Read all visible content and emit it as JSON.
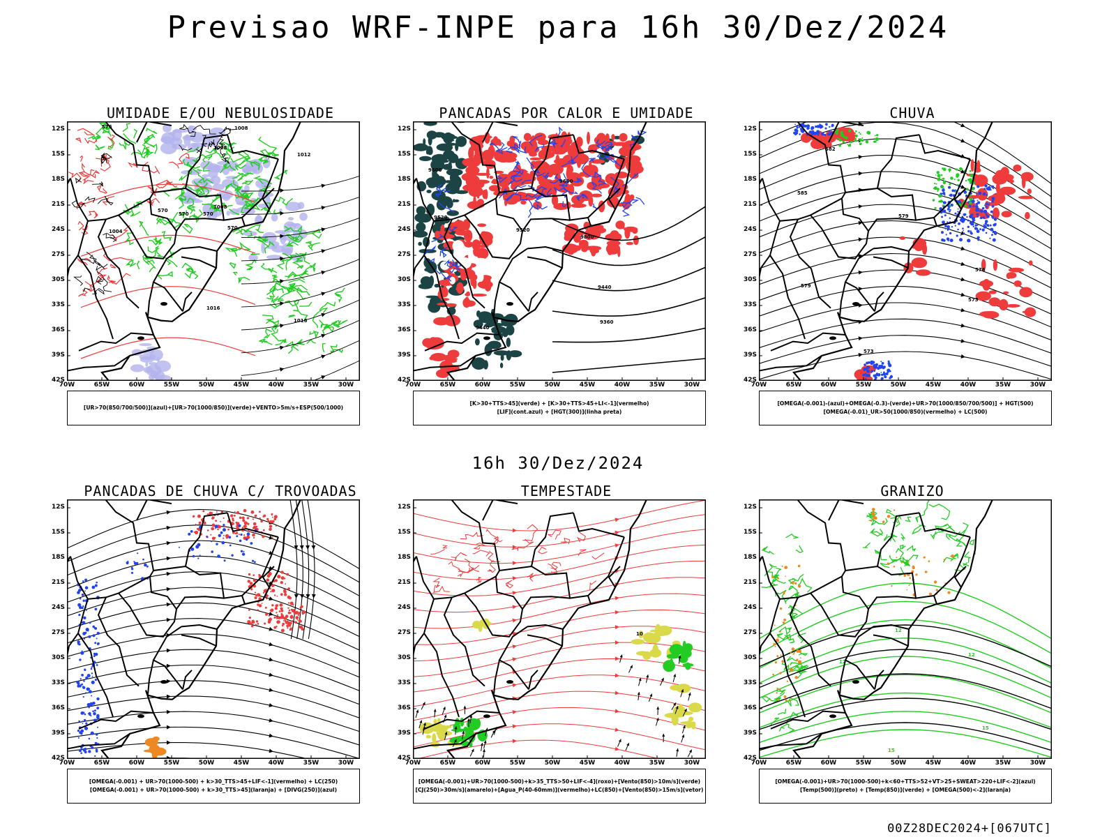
{
  "header": {
    "title": "Previsao WRF-INPE  para 16h 30/Dez/2024"
  },
  "mid_label": "16h 30/Dez/2024",
  "footer_stamp": "00Z28DEC2024+[067UTC]",
  "axes": {
    "lat_ticks": [
      "12S",
      "15S",
      "18S",
      "21S",
      "24S",
      "27S",
      "30S",
      "33S",
      "36S",
      "39S",
      "42S"
    ],
    "lon_ticks": [
      "70W",
      "65W",
      "60W",
      "55W",
      "50W",
      "45W",
      "40W",
      "35W",
      "30W"
    ]
  },
  "colors": {
    "green": "#22cc22",
    "red": "#ee3b3b",
    "blue": "#2244ee",
    "lavender": "#b3b3ee",
    "dark_teal": "#1c4444",
    "yellow": "#d9d94a",
    "orange": "#ee8822",
    "black": "#000000"
  },
  "panels": [
    {
      "title": "UMIDADE E/OU NEBULOSIDADE",
      "caption_lines": [
        "[UR>70(850/700/500)](azul)+[UR>70(1000/850)](verde)+VENTO>5m/s+ESP(500/1000)"
      ],
      "contour_labels": [
        "1008",
        "1008",
        "1012",
        "1016",
        "1016",
        "1008",
        "1004",
        "570",
        "570",
        "570",
        "570",
        "576"
      ]
    },
    {
      "title": "PANCADAS POR CALOR E UMIDADE",
      "caption_lines": [
        "[K>30+TTS>45](verde) + [K>30+TTS>45+LI<-1](vermelho)",
        "[LIF](cont.azul) + [HGT(300)](linha preta)"
      ],
      "contour_labels": [
        "9600",
        "9600",
        "9520",
        "9520",
        "9800",
        "9440",
        "9360",
        "9440"
      ]
    },
    {
      "title": "CHUVA",
      "caption_lines": [
        "[OMEGA(-0.001)-(azul)+OMEGA(-0.3)-(verde)+UR>70(1000/850/700/500)] + HGT(500)",
        "[OMEGA(-0.01)_UR>50(1000/850)(vermelho) + LC(500)"
      ],
      "contour_labels": [
        "582",
        "585",
        "579",
        "576",
        "573",
        "573",
        "579"
      ]
    },
    {
      "title": "PANCADAS DE CHUVA C/ TROVOADAS",
      "caption_lines": [
        "[OMEGA(-0.001) + UR>70(1000-500) + k>30_TTS>45+LIF<-1](vermelho) + LC(250)",
        "[OMEGA(-0.001) + UR>70(1000-500) + k>30_TTS>45](laranja) + [DIVG(250)](azul)"
      ],
      "contour_labels": []
    },
    {
      "title": "TEMPESTADE",
      "caption_lines": [
        "[OMEGA(-0.001)+UR>70(1000-500)+k>35_TTS>50+LIF<-4](roxo)+[Vento(850)>10m/s](verde)",
        "[CJ(250)>30m/s](amarelo)+[Agua_P(40-60mm)](vermelho)+LC(850)+[Vento(850)>15m/s](vetor)"
      ],
      "contour_labels": [
        "10"
      ]
    },
    {
      "title": "GRANIZO",
      "caption_lines": [
        "[OMEGA(-0.001)+UR>70(1000-500)+k<60+TTS>52+VT>25+SWEAT>220+LIF<-2](azul)",
        "[Temp(500)](preto) + [Temp(850)](verde) + [OMEGA(500)<-2](laranja)"
      ],
      "contour_labels": [
        "12",
        "12",
        "12",
        "15",
        "15"
      ]
    }
  ]
}
